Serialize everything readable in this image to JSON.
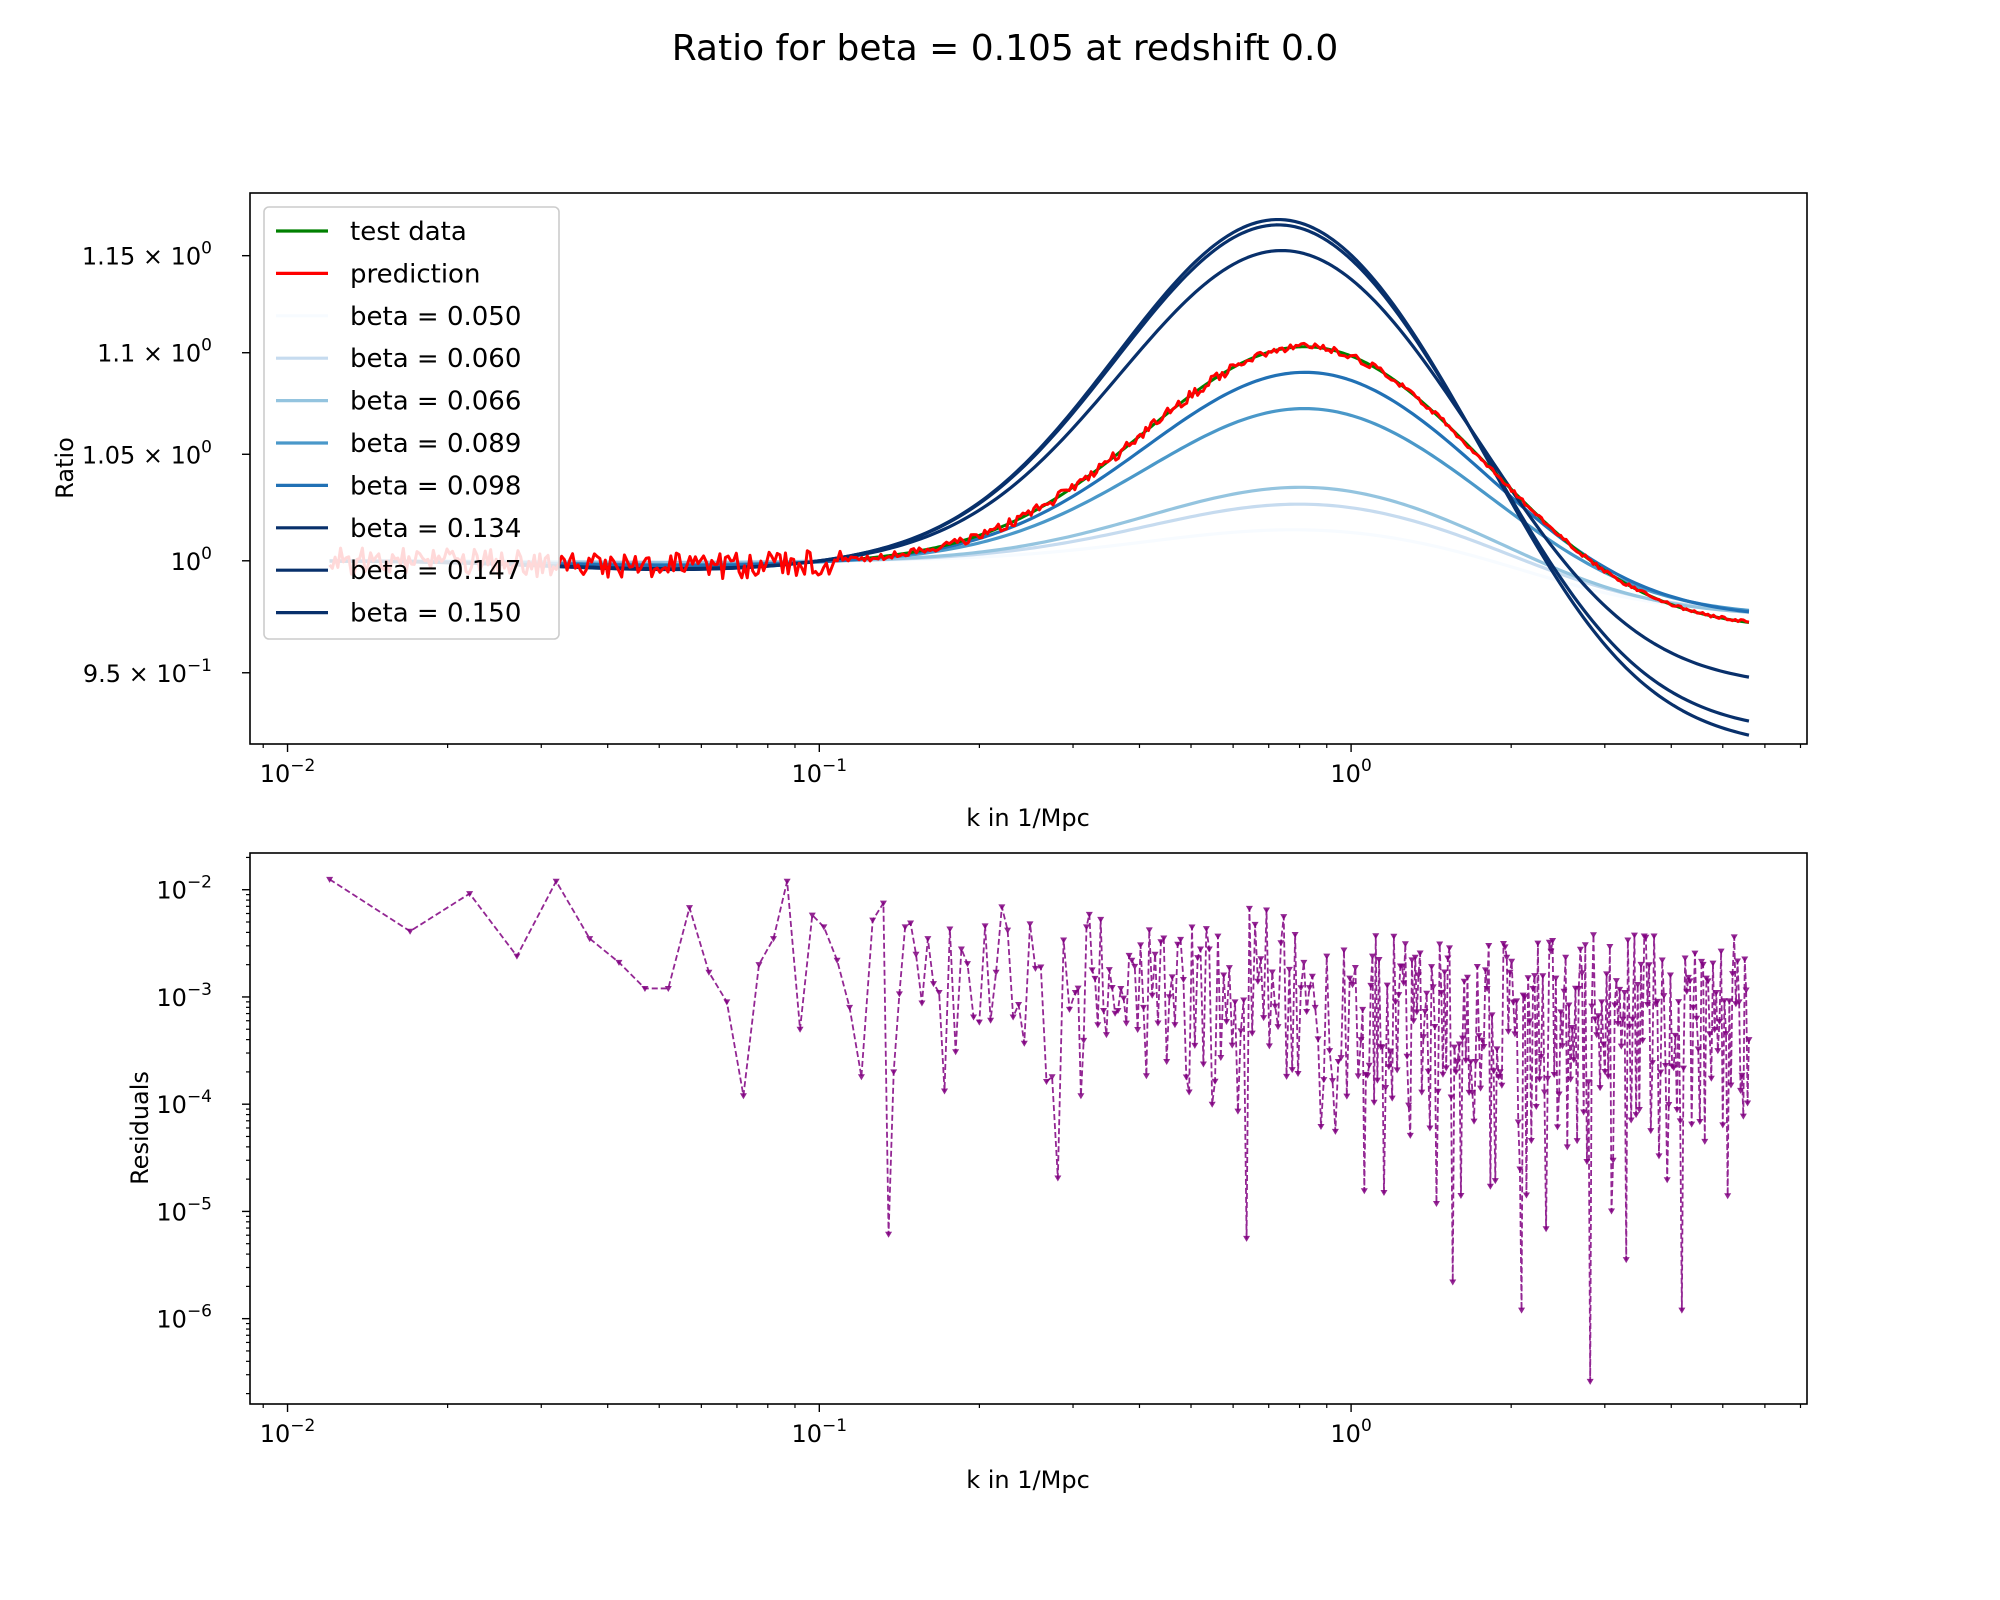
{
  "chart_data": {
    "figure_title": "Ratio for beta = 0.105  at redshift 0.0",
    "panels": [
      {
        "type": "line",
        "xlabel": "k in 1/Mpc",
        "ylabel": "Ratio",
        "xscale": "log",
        "yscale": "log",
        "xlim": [
          0.0085,
          7.2
        ],
        "ylim": [
          0.9195,
          1.1835
        ],
        "x_ticks": [
          {
            "v": 0.01,
            "base": "10",
            "exp": "−2"
          },
          {
            "v": 0.1,
            "base": "10",
            "exp": "−1"
          },
          {
            "v": 1,
            "base": "10",
            "exp": "0"
          }
        ],
        "y_ticks": [
          {
            "v": 0.95,
            "pre": "9.5 × 10",
            "exp": "−1"
          },
          {
            "v": 1.0,
            "pre": "10",
            "exp": "0"
          },
          {
            "v": 1.05,
            "pre": "1.05 × 10",
            "exp": "0"
          },
          {
            "v": 1.1,
            "pre": "1.1 × 10",
            "exp": "0"
          },
          {
            "v": 1.15,
            "pre": "1.15 × 10",
            "exp": "0"
          }
        ],
        "legend_position": "upper left",
        "series": [
          {
            "name": "test data",
            "color": "#008000",
            "kind": "test",
            "amp": 0.104,
            "kpeak": 0.83,
            "tail": 0.97,
            "ksmooth": 0.12
          },
          {
            "name": "prediction",
            "color": "#ff0000",
            "kind": "prediction",
            "amp": 0.104,
            "kpeak": 0.83,
            "tail": 0.97
          },
          {
            "name": "beta = 0.050",
            "color": "#f7fbff",
            "kind": "model",
            "amp": 0.015,
            "kpeak": 0.83,
            "tail": 0.977
          },
          {
            "name": "beta = 0.060",
            "color": "#c6dbef",
            "kind": "model",
            "amp": 0.027,
            "kpeak": 0.83,
            "tail": 0.977
          },
          {
            "name": "beta = 0.066",
            "color": "#94c4df",
            "kind": "model",
            "amp": 0.035,
            "kpeak": 0.83,
            "tail": 0.976
          },
          {
            "name": "beta = 0.089",
            "color": "#4a98c9",
            "kind": "model",
            "amp": 0.073,
            "kpeak": 0.83,
            "tail": 0.976
          },
          {
            "name": "beta = 0.098",
            "color": "#2171b5",
            "kind": "model",
            "amp": 0.091,
            "kpeak": 0.83,
            "tail": 0.975
          },
          {
            "name": "beta = 0.134",
            "color": "#08306b",
            "kind": "model",
            "amp": 0.154,
            "kpeak": 0.75,
            "tail": 0.946
          },
          {
            "name": "beta = 0.147",
            "color": "#08306b",
            "kind": "model",
            "amp": 0.168,
            "kpeak": 0.74,
            "tail": 0.927
          },
          {
            "name": "beta = 0.150",
            "color": "#08306b",
            "kind": "model",
            "amp": 0.171,
            "kpeak": 0.74,
            "tail": 0.921
          }
        ]
      },
      {
        "type": "line",
        "xlabel": "k in 1/Mpc",
        "ylabel": "Residuals",
        "xscale": "log",
        "yscale": "log",
        "xlim": [
          0.0085,
          7.2
        ],
        "ylim": [
          1.6e-07,
          0.022
        ],
        "x_ticks": [
          {
            "v": 0.01,
            "base": "10",
            "exp": "−2"
          },
          {
            "v": 0.1,
            "base": "10",
            "exp": "−1"
          },
          {
            "v": 1,
            "base": "10",
            "exp": "0"
          }
        ],
        "y_ticks": [
          {
            "v": 0.01,
            "pre": "10",
            "exp": "−2"
          },
          {
            "v": 0.001,
            "pre": "10",
            "exp": "−3"
          },
          {
            "v": 0.0001,
            "pre": "10",
            "exp": "−4"
          },
          {
            "v": 1e-05,
            "pre": "10",
            "exp": "−5"
          },
          {
            "v": 1e-06,
            "pre": "10",
            "exp": "−6"
          }
        ],
        "series": [
          {
            "color": "#800080",
            "linestyle": "dashed",
            "marker": "triangle-down",
            "anchor_points": [
              [
                0.012,
                0.0125
              ],
              [
                0.017,
                0.0041
              ],
              [
                0.022,
                0.0092
              ],
              [
                0.027,
                0.0024
              ],
              [
                0.032,
                0.012
              ],
              [
                0.037,
                0.0035
              ],
              [
                0.042,
                0.0021
              ],
              [
                0.047,
                0.0012
              ],
              [
                0.052,
                0.0012
              ],
              [
                0.057,
                0.0068
              ],
              [
                0.062,
                0.0017
              ],
              [
                0.067,
                0.0009
              ],
              [
                0.072,
                0.00012
              ],
              [
                0.077,
                0.002
              ],
              [
                0.082,
                0.0035
              ],
              [
                0.087,
                0.012
              ],
              [
                0.092,
                0.0005
              ],
              [
                0.097,
                0.0058
              ],
              [
                0.102,
                0.0045
              ],
              [
                0.108,
                0.0022
              ],
              [
                0.114,
                0.0008
              ],
              [
                0.12,
                0.00018
              ],
              [
                0.126,
                0.0052
              ],
              [
                0.132,
                0.0075
              ],
              [
                0.138,
                0.0002
              ],
              [
                0.145,
                0.0045
              ],
              [
                0.152,
                0.0025
              ],
              [
                0.16,
                0.0035
              ],
              [
                0.168,
                0.0011
              ],
              [
                0.176,
                0.0043
              ],
              [
                0.185,
                0.0028
              ],
              [
                0.195,
                0.00065
              ],
              [
                0.205,
                0.0046
              ],
              [
                0.215,
                0.0017
              ],
              [
                0.226,
                0.0042
              ],
              [
                0.237,
                0.00085
              ],
              [
                0.249,
                0.0048
              ],
              [
                0.261,
                0.0019
              ],
              [
                0.274,
                0.00018
              ],
              [
                0.288,
                0.0034
              ],
              [
                0.303,
                0.0011
              ],
              [
                0.318,
                0.0045
              ],
              [
                0.334,
                0.00055
              ],
              [
                0.351,
                0.0018
              ],
              [
                0.369,
                0.0012
              ],
              [
                0.387,
                0.0022
              ],
              [
                0.407,
                0.0008
              ],
              [
                0.428,
                0.0025
              ],
              [
                0.45,
                0.00025
              ],
              [
                0.472,
                0.0031
              ],
              [
                0.496,
                0.00013
              ],
              [
                0.521,
                0.0028
              ],
              [
                0.548,
                0.0001
              ],
              [
                0.576,
                0.0016
              ],
              [
                0.605,
                0.0009
              ],
              [
                0.636,
                5.6e-06
              ],
              [
                0.668,
                0.0014
              ],
              [
                0.702,
                0.00035
              ],
              [
                0.738,
                0.0032
              ],
              [
                0.775,
                0.00021
              ],
              [
                0.815,
                0.0021
              ],
              [
                0.856,
                0.0008
              ],
              [
                0.9,
                0.0024
              ],
              [
                0.946,
                0.00025
              ],
              [
                0.994,
                0.0015
              ],
              [
                1.044,
                0.0004
              ],
              [
                1.097,
                0.0024
              ],
              [
                1.153,
                1.5e-05
              ],
              [
                1.212,
                0.0009
              ],
              [
                1.274,
                0.00028
              ],
              [
                1.339,
                0.0016
              ],
              [
                1.407,
                6e-05
              ],
              [
                1.478,
                0.0011
              ],
              [
                1.553,
                2.2e-06
              ],
              [
                1.632,
                0.0014
              ],
              [
                1.715,
                0.00025
              ],
              [
                1.802,
                0.0012
              ],
              [
                1.894,
                0.00018
              ],
              [
                1.99,
                0.0017
              ],
              [
                2.092,
                1.2e-06
              ],
              [
                2.198,
                0.0012
              ],
              [
                2.31,
                0.00013
              ],
              [
                2.427,
                0.0015
              ],
              [
                2.55,
                4e-05
              ],
              [
                2.68,
                0.0012
              ],
              [
                2.816,
                2.6e-07
              ],
              [
                2.96,
                0.0009
              ],
              [
                3.11,
                3e-05
              ],
              [
                3.268,
                0.0011
              ],
              [
                3.435,
                8e-05
              ],
              [
                3.609,
                0.00085
              ],
              [
                3.793,
                3.3e-05
              ],
              [
                3.986,
                0.0016
              ],
              [
                4.188,
                1.2e-06
              ],
              [
                4.401,
                0.0008
              ],
              [
                4.625,
                4.5e-05
              ],
              [
                4.86,
                0.0011
              ],
              [
                5.107,
                1.4e-05
              ],
              [
                5.367,
                0.0009
              ],
              [
                5.6,
                0.0004
              ]
            ]
          }
        ]
      }
    ]
  }
}
